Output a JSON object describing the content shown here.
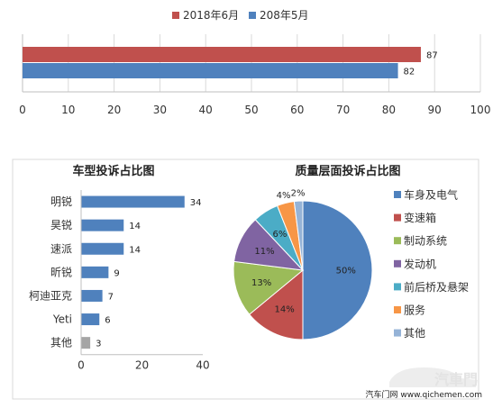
{
  "chart_data": [
    {
      "type": "bar",
      "orientation": "horizontal",
      "title": "",
      "categories": [
        ""
      ],
      "series": [
        {
          "name": "2018年6月",
          "values": [
            87
          ],
          "color": "#C0504D"
        },
        {
          "name": "208年5月",
          "values": [
            82
          ],
          "color": "#4F81BD"
        }
      ],
      "xlim": [
        0,
        100
      ],
      "xticks": [
        0,
        10,
        20,
        30,
        40,
        50,
        60,
        70,
        80,
        90,
        100
      ],
      "grid": true,
      "legend": "top"
    },
    {
      "type": "bar",
      "orientation": "horizontal",
      "title": "车型投诉占比图",
      "categories": [
        "明锐",
        "昊锐",
        "速派",
        "昕锐",
        "柯迪亚克",
        "Yeti",
        "其他"
      ],
      "values": [
        34,
        14,
        14,
        9,
        7,
        6,
        3
      ],
      "colors": [
        "#4F81BD",
        "#4F81BD",
        "#4F81BD",
        "#4F81BD",
        "#4F81BD",
        "#4F81BD",
        "#A5A5A5"
      ],
      "xlim": [
        0,
        40
      ],
      "xticks": [
        0,
        20,
        40
      ],
      "grid": false
    },
    {
      "type": "pie",
      "title": "质量层面投诉占比图",
      "labels": [
        "车身及电气",
        "变速箱",
        "制动系统",
        "发动机",
        "前后桥及悬架",
        "服务",
        "其他"
      ],
      "values": [
        50,
        14,
        13,
        11,
        6,
        4,
        2
      ],
      "value_labels": [
        "50%",
        "14%",
        "13%",
        "11%",
        "6%",
        "4%",
        "2%"
      ],
      "colors": [
        "#4F81BD",
        "#C0504D",
        "#9BBB59",
        "#8064A2",
        "#4BACC6",
        "#F79646",
        "#95B3D7"
      ],
      "legend": "right"
    }
  ],
  "watermark": {
    "logo_text": "汽车门",
    "source_text": "汽车门网 www.qichemen.com"
  }
}
